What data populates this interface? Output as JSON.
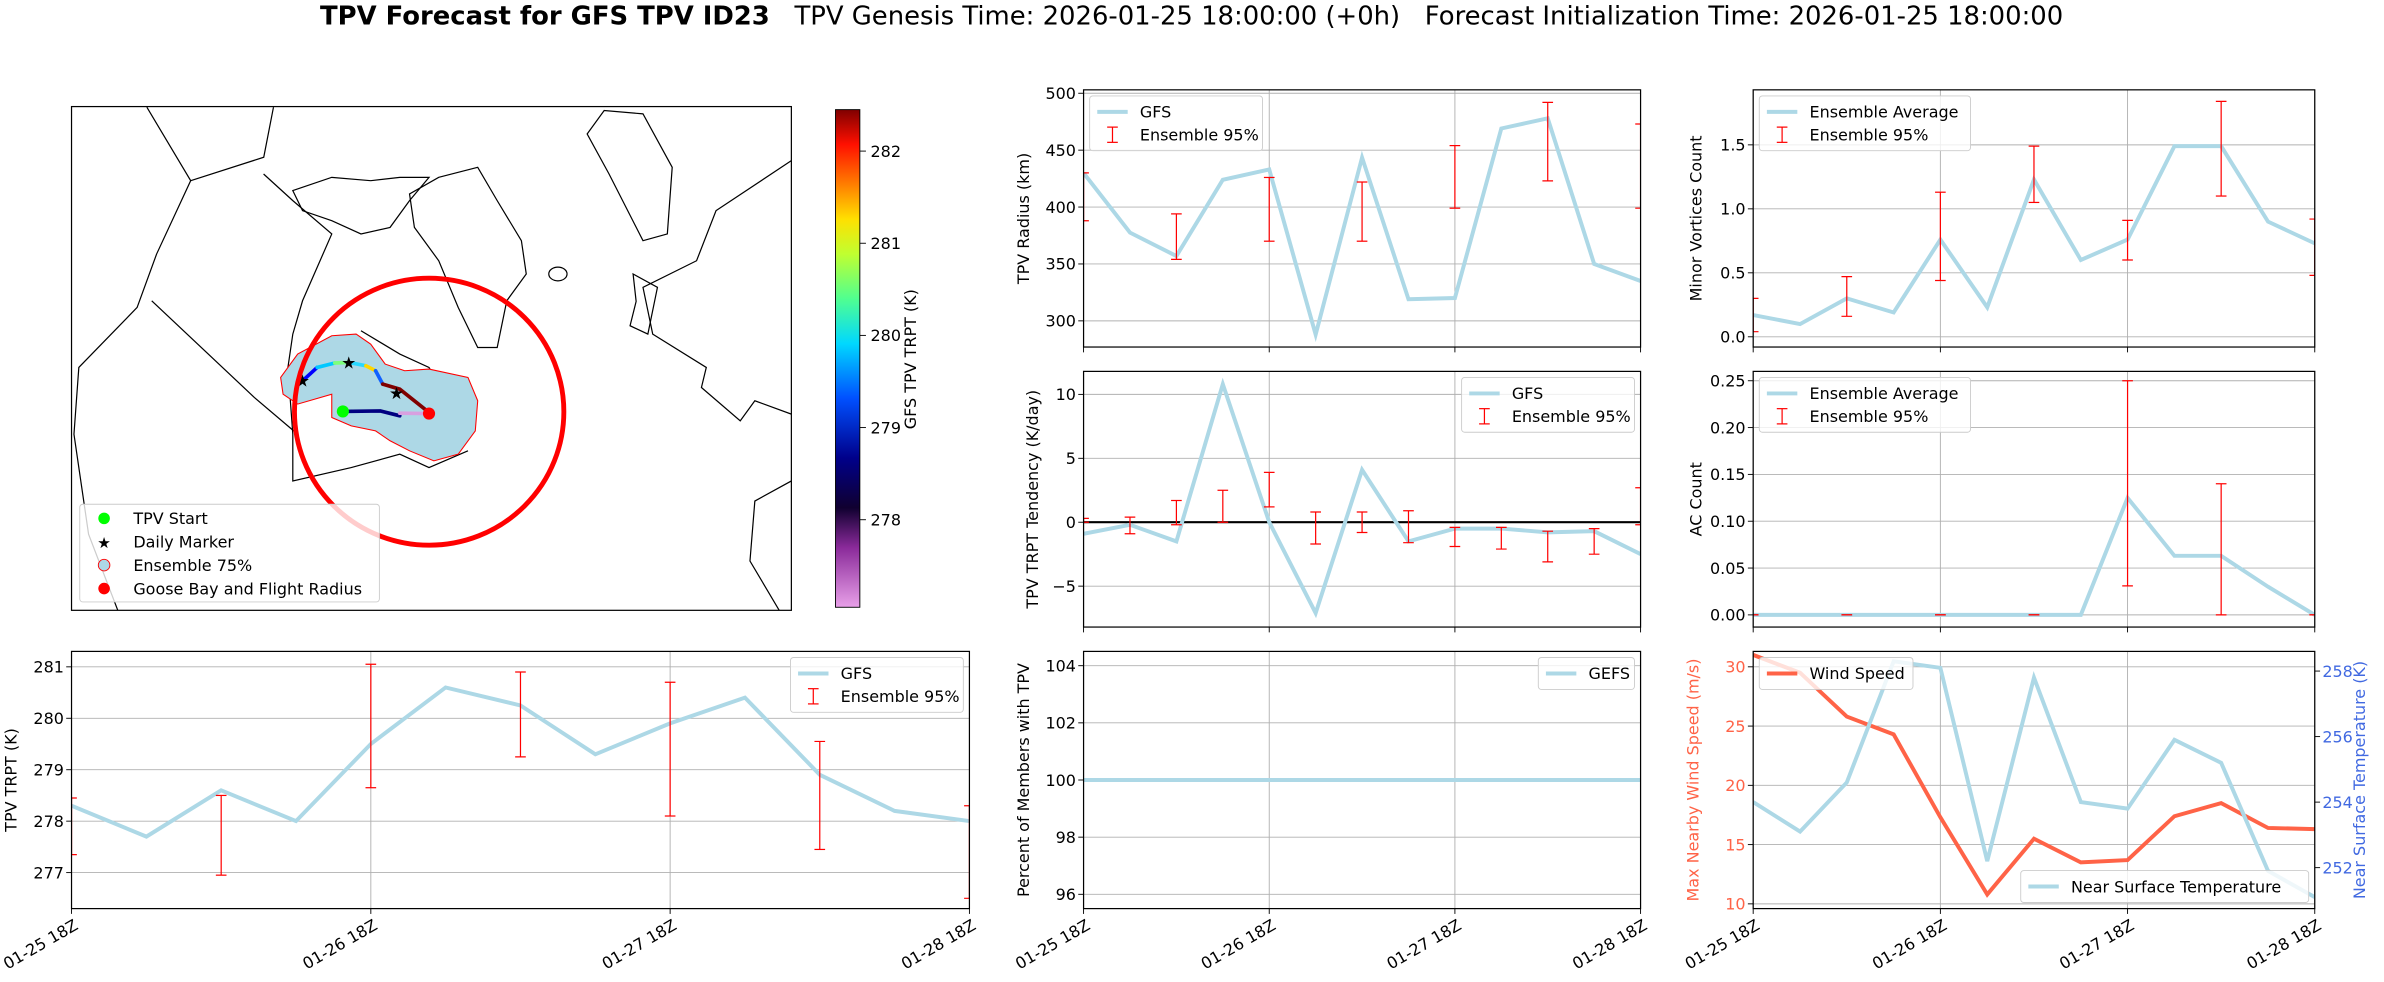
{
  "header": {
    "title_bold": "TPV Forecast for GFS TPV ID23",
    "title_rest": "TPV Genesis Time: 2026-01-25 18:00:00 (+0h)   Forecast Initialization Time: 2026-01-25 18:00:00"
  },
  "map": {
    "colorbar": {
      "label": "GFS TPV TRPT (K)",
      "ticks": [
        "278",
        "279",
        "280",
        "281",
        "282"
      ],
      "range": [
        277.05,
        282.45
      ]
    },
    "legend": [
      "TPV Start",
      "Daily Marker",
      "Ensemble 75%",
      "Goose Bay and Flight Radius"
    ],
    "colors": {
      "start": "#00ff00",
      "daily": "#ff00ff",
      "ensemble_fill": "#add8e6",
      "ensemble_edge": "#ff0000",
      "goose_bay": "#ff0000"
    }
  },
  "x_tick_labels": [
    "01-25 18Z",
    "01-26 18Z",
    "01-27 18Z",
    "01-28 18Z"
  ],
  "chart_data": [
    {
      "id": "trpt",
      "type": "line",
      "title": "",
      "ylabel": "TPV TRPT (K)",
      "x": [
        0,
        6,
        12,
        18,
        24,
        30,
        36,
        42,
        48,
        54,
        60,
        66,
        72
      ],
      "xlim": [
        0,
        72
      ],
      "xticks": [
        0,
        24,
        48,
        72
      ],
      "ylim": [
        276.3,
        281.3
      ],
      "yticks": [
        277,
        278,
        279,
        280,
        281
      ],
      "ytick_labels": [
        "277",
        "278",
        "279",
        "280",
        "281"
      ],
      "series": [
        {
          "name": "GFS",
          "color": "#add8e6",
          "values": [
            278.3,
            277.7,
            278.6,
            278.0,
            279.5,
            280.6,
            280.25,
            279.3,
            279.9,
            280.4,
            278.9,
            278.2,
            278.0
          ]
        }
      ],
      "errorbars": {
        "name": "Ensemble 95%",
        "color": "#ff0000",
        "x": [
          0,
          12,
          24,
          36,
          48,
          60,
          72
        ],
        "low": [
          277.35,
          276.95,
          278.65,
          279.25,
          278.1,
          277.45,
          276.5
        ],
        "high": [
          278.45,
          278.5,
          281.05,
          280.9,
          280.7,
          279.55,
          278.3
        ]
      },
      "legends": [
        {
          "loc": "upper right",
          "entries": [
            {
              "label": "GFS",
              "kind": "line",
              "color": "#add8e6"
            },
            {
              "label": "Ensemble 95%",
              "kind": "errorbar",
              "color": "#ff0000"
            }
          ]
        }
      ]
    },
    {
      "id": "radius",
      "type": "line",
      "title": "",
      "ylabel": "TPV Radius (km)",
      "x": [
        0,
        6,
        12,
        18,
        24,
        30,
        36,
        42,
        48,
        54,
        60,
        66,
        72
      ],
      "xlim": [
        0,
        72
      ],
      "xticks": [
        0,
        24,
        48,
        72
      ],
      "ylim": [
        277,
        503
      ],
      "yticks": [
        300,
        350,
        400,
        450,
        500
      ],
      "ytick_labels": [
        "300",
        "350",
        "400",
        "450",
        "500"
      ],
      "series": [
        {
          "name": "GFS",
          "color": "#add8e6",
          "values": [
            430,
            377.5,
            357,
            424,
            433,
            288,
            443.5,
            319,
            320,
            469,
            478,
            350,
            335
          ]
        }
      ],
      "errorbars": {
        "name": "Ensemble 95%",
        "color": "#ff0000",
        "x": [
          0,
          12,
          24,
          36,
          48,
          60,
          72
        ],
        "low": [
          388,
          354,
          370,
          370,
          399,
          423,
          399
        ],
        "high": [
          430,
          394,
          426,
          422,
          454,
          492,
          473
        ]
      },
      "legends": [
        {
          "loc": "upper left",
          "entries": [
            {
              "label": "GFS",
              "kind": "line",
              "color": "#add8e6"
            },
            {
              "label": "Ensemble 95%",
              "kind": "errorbar",
              "color": "#ff0000"
            }
          ]
        }
      ]
    },
    {
      "id": "tendency",
      "type": "line",
      "title": "",
      "ylabel": "TPV TRPT Tendency (K/day)",
      "x": [
        0,
        6,
        12,
        18,
        24,
        30,
        36,
        42,
        48,
        54,
        60,
        66,
        72
      ],
      "xlim": [
        0,
        72
      ],
      "xticks": [
        0,
        24,
        48,
        72
      ],
      "ylim": [
        -8.2,
        11.8
      ],
      "yticks": [
        -5,
        0,
        5,
        10
      ],
      "ytick_labels": [
        "−5",
        "0",
        "5",
        "10"
      ],
      "hline": 0,
      "series": [
        {
          "name": "GFS",
          "color": "#add8e6",
          "values": [
            -0.9,
            -0.2,
            -1.5,
            10.8,
            0,
            -7.1,
            4.1,
            -1.5,
            -0.5,
            -0.5,
            -0.8,
            -0.7,
            -2.5
          ]
        }
      ],
      "errorbars": {
        "name": "Ensemble 95%",
        "color": "#ff0000",
        "x": [
          0,
          6,
          12,
          18,
          24,
          30,
          36,
          42,
          48,
          54,
          60,
          66,
          72
        ],
        "low": [
          0,
          -0.9,
          -0.2,
          0,
          1.2,
          -1.7,
          -0.8,
          -1.6,
          -1.9,
          -2.1,
          -3.1,
          -2.5,
          -0.2
        ],
        "high": [
          0.3,
          0.4,
          1.7,
          2.5,
          3.9,
          0.8,
          0.8,
          0.9,
          -0.4,
          -0.4,
          -0.7,
          -0.5,
          2.7
        ]
      },
      "legends": [
        {
          "loc": "upper right",
          "entries": [
            {
              "label": "GFS",
              "kind": "line",
              "color": "#add8e6"
            },
            {
              "label": "Ensemble 95%",
              "kind": "errorbar",
              "color": "#ff0000"
            }
          ]
        }
      ]
    },
    {
      "id": "percent",
      "type": "line",
      "title": "",
      "ylabel": "Percent of Members with TPV",
      "x": [
        0,
        6,
        12,
        18,
        24,
        30,
        36,
        42,
        48,
        54,
        60,
        66,
        72
      ],
      "xlim": [
        0,
        72
      ],
      "xticks": [
        0,
        24,
        48,
        72
      ],
      "ylim": [
        95.5,
        104.5
      ],
      "yticks": [
        96,
        98,
        100,
        102,
        104
      ],
      "ytick_labels": [
        "96",
        "98",
        "100",
        "102",
        "104"
      ],
      "series": [
        {
          "name": "GEFS",
          "color": "#add8e6",
          "values": [
            100,
            100,
            100,
            100,
            100,
            100,
            100,
            100,
            100,
            100,
            100,
            100,
            100
          ]
        }
      ],
      "legends": [
        {
          "loc": "upper right",
          "entries": [
            {
              "label": "GEFS",
              "kind": "line",
              "color": "#add8e6"
            }
          ]
        }
      ]
    },
    {
      "id": "minor",
      "type": "line",
      "title": "",
      "ylabel": "Minor Vortices Count",
      "x": [
        0,
        6,
        12,
        18,
        24,
        30,
        36,
        42,
        48,
        54,
        60,
        66,
        72
      ],
      "xlim": [
        0,
        72
      ],
      "xticks": [
        0,
        24,
        48,
        72
      ],
      "ylim": [
        -0.08,
        1.93
      ],
      "yticks": [
        0,
        0.5,
        1.0,
        1.5
      ],
      "ytick_labels": [
        "0.0",
        "0.5",
        "1.0",
        "1.5"
      ],
      "series": [
        {
          "name": "Ensemble Average",
          "color": "#add8e6",
          "values": [
            0.17,
            0.1,
            0.3,
            0.19,
            0.76,
            0.23,
            1.23,
            0.6,
            0.76,
            1.49,
            1.49,
            0.9,
            0.73
          ]
        }
      ],
      "errorbars": {
        "name": "Ensemble 95%",
        "color": "#ff0000",
        "x": [
          0,
          12,
          24,
          36,
          48,
          60,
          72
        ],
        "low": [
          0.04,
          0.16,
          0.44,
          1.05,
          0.6,
          1.1,
          0.48
        ],
        "high": [
          0.3,
          0.47,
          1.13,
          1.49,
          0.91,
          1.84,
          0.92
        ]
      },
      "legends": [
        {
          "loc": "upper left",
          "entries": [
            {
              "label": "Ensemble Average",
              "kind": "line",
              "color": "#add8e6"
            },
            {
              "label": "Ensemble 95%",
              "kind": "errorbar",
              "color": "#ff0000"
            }
          ]
        }
      ]
    },
    {
      "id": "ac",
      "type": "line",
      "title": "",
      "ylabel": "AC Count",
      "x": [
        0,
        6,
        12,
        18,
        24,
        30,
        36,
        42,
        48,
        54,
        60,
        66,
        72
      ],
      "xlim": [
        0,
        72
      ],
      "xticks": [
        0,
        24,
        48,
        72
      ],
      "ylim": [
        -0.013,
        0.26
      ],
      "yticks": [
        0,
        0.05,
        0.1,
        0.15,
        0.2,
        0.25
      ],
      "ytick_labels": [
        "0.00",
        "0.05",
        "0.10",
        "0.15",
        "0.20",
        "0.25"
      ],
      "series": [
        {
          "name": "Ensemble Average",
          "color": "#add8e6",
          "values": [
            0,
            0,
            0,
            0,
            0,
            0,
            0,
            0,
            0.125,
            0.063,
            0.063,
            0.03,
            0
          ]
        }
      ],
      "errorbars": {
        "name": "Ensemble 95%",
        "color": "#ff0000",
        "x": [
          0,
          12,
          24,
          36,
          48,
          60,
          72
        ],
        "low": [
          0,
          0,
          0,
          0,
          0.031,
          0,
          0
        ],
        "high": [
          0,
          0,
          0,
          0,
          0.25,
          0.14,
          0
        ]
      },
      "legends": [
        {
          "loc": "upper left",
          "entries": [
            {
              "label": "Ensemble Average",
              "kind": "line",
              "color": "#add8e6"
            },
            {
              "label": "Ensemble 95%",
              "kind": "errorbar",
              "color": "#ff0000"
            }
          ]
        }
      ]
    },
    {
      "id": "wind",
      "type": "line",
      "title": "",
      "ylabel": "Max Nearby Wind Speed (m/s)",
      "ylabel_color": "#ff6347",
      "y2label": "Near Surface Temperature (K)",
      "y2label_color": "#4169e1",
      "x": [
        0,
        6,
        12,
        18,
        24,
        30,
        36,
        42,
        48,
        54,
        60,
        66,
        72
      ],
      "xlim": [
        0,
        72
      ],
      "xticks": [
        0,
        24,
        48,
        72
      ],
      "ylim": [
        9.6,
        31.3
      ],
      "yticks": [
        10,
        15,
        20,
        25,
        30
      ],
      "ytick_labels": [
        "10",
        "15",
        "20",
        "25",
        "30"
      ],
      "y2lim": [
        250.75,
        258.6
      ],
      "y2ticks": [
        252,
        254,
        256,
        258
      ],
      "y2tick_labels": [
        "252",
        "254",
        "256",
        "258"
      ],
      "series": [
        {
          "name": "Wind Speed",
          "color": "#ff6347",
          "axis": "left",
          "values": [
            31,
            29.5,
            25.8,
            24.3,
            17.3,
            10.8,
            15.5,
            13.5,
            13.7,
            17.4,
            18.5,
            16.4,
            16.3
          ]
        },
        {
          "name": "Near Surface Temperature",
          "color": "#add8e6",
          "axis": "right",
          "values": [
            254,
            253.1,
            254.6,
            258.3,
            258.1,
            252.2,
            257.8,
            254,
            253.8,
            255.9,
            255.2,
            251.9,
            251.1
          ]
        }
      ],
      "legends": [
        {
          "loc": "upper left",
          "entries": [
            {
              "label": "Wind Speed",
              "kind": "line",
              "color": "#ff6347"
            }
          ]
        },
        {
          "loc": "lower right",
          "entries": [
            {
              "label": "Near Surface Temperature",
              "kind": "line",
              "color": "#add8e6"
            }
          ]
        }
      ]
    }
  ]
}
